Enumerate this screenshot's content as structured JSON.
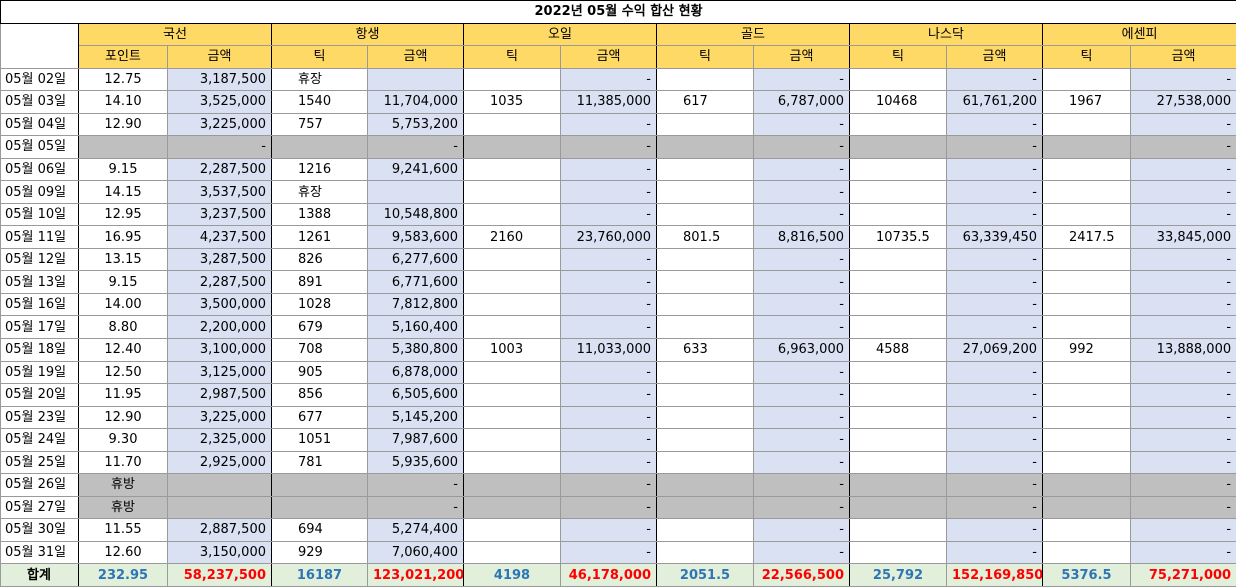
{
  "title": "2022년 05월 수익 합산 현황",
  "groups": [
    "국선",
    "항생",
    "오일",
    "골드",
    "나스닥",
    "에센피"
  ],
  "subheaders": [
    "포인트",
    "금액",
    "틱",
    "금액",
    "틱",
    "금액",
    "틱",
    "금액",
    "틱",
    "금액",
    "틱",
    "금액"
  ],
  "rows": [
    [
      "05월 02일",
      "12.75",
      "3,187,500",
      "휴장",
      null,
      null,
      "-",
      null,
      "-",
      null,
      "-",
      null,
      "-"
    ],
    [
      "05월 03일",
      "14.10",
      "3,525,000",
      "1540",
      "11,704,000",
      "1035",
      "11,385,000",
      "617",
      "6,787,000",
      "10468",
      "61,761,200",
      "1967",
      "27,538,000"
    ],
    [
      "05월 04일",
      "12.90",
      "3,225,000",
      "757",
      "5,753,200",
      null,
      "-",
      null,
      "-",
      null,
      "-",
      null,
      "-"
    ],
    [
      "05월 05일",
      null,
      "-",
      null,
      "-",
      null,
      "-",
      null,
      "-",
      null,
      "-",
      null,
      "-"
    ],
    [
      "05월 06일",
      "9.15",
      "2,287,500",
      "1216",
      "9,241,600",
      null,
      "-",
      null,
      "-",
      null,
      "-",
      null,
      "-"
    ],
    [
      "05월 09일",
      "14.15",
      "3,537,500",
      "휴장",
      null,
      null,
      "-",
      null,
      "-",
      null,
      "-",
      null,
      "-"
    ],
    [
      "05월 10일",
      "12.95",
      "3,237,500",
      "1388",
      "10,548,800",
      null,
      "-",
      null,
      "-",
      null,
      "-",
      null,
      "-"
    ],
    [
      "05월 11일",
      "16.95",
      "4,237,500",
      "1261",
      "9,583,600",
      "2160",
      "23,760,000",
      "801.5",
      "8,816,500",
      "10735.5",
      "63,339,450",
      "2417.5",
      "33,845,000"
    ],
    [
      "05월 12일",
      "13.15",
      "3,287,500",
      "826",
      "6,277,600",
      null,
      "-",
      null,
      "-",
      null,
      "-",
      null,
      "-"
    ],
    [
      "05월 13일",
      "9.15",
      "2,287,500",
      "891",
      "6,771,600",
      null,
      "-",
      null,
      "-",
      null,
      "-",
      null,
      "-"
    ],
    [
      "05월 16일",
      "14.00",
      "3,500,000",
      "1028",
      "7,812,800",
      null,
      "-",
      null,
      "-",
      null,
      "-",
      null,
      "-"
    ],
    [
      "05월 17일",
      "8.80",
      "2,200,000",
      "679",
      "5,160,400",
      null,
      "-",
      null,
      "-",
      null,
      "-",
      null,
      "-"
    ],
    [
      "05월 18일",
      "12.40",
      "3,100,000",
      "708",
      "5,380,800",
      "1003",
      "11,033,000",
      "633",
      "6,963,000",
      "4588",
      "27,069,200",
      "992",
      "13,888,000"
    ],
    [
      "05월 19일",
      "12.50",
      "3,125,000",
      "905",
      "6,878,000",
      null,
      "-",
      null,
      "-",
      null,
      "-",
      null,
      "-"
    ],
    [
      "05월 20일",
      "11.95",
      "2,987,500",
      "856",
      "6,505,600",
      null,
      "-",
      null,
      "-",
      null,
      "-",
      null,
      "-"
    ],
    [
      "05월 23일",
      "12.90",
      "3,225,000",
      "677",
      "5,145,200",
      null,
      "-",
      null,
      "-",
      null,
      "-",
      null,
      "-"
    ],
    [
      "05월 24일",
      "9.30",
      "2,325,000",
      "1051",
      "7,987,600",
      null,
      "-",
      null,
      "-",
      null,
      "-",
      null,
      "-"
    ],
    [
      "05월 25일",
      "11.70",
      "2,925,000",
      "781",
      "5,935,600",
      null,
      "-",
      null,
      "-",
      null,
      "-",
      null,
      "-"
    ],
    [
      "05월 26일",
      "휴방",
      null,
      null,
      "-",
      null,
      "-",
      null,
      "-",
      null,
      "-",
      null,
      "-"
    ],
    [
      "05월 27일",
      "휴방",
      null,
      null,
      "-",
      null,
      "-",
      null,
      "-",
      null,
      "-",
      null,
      "-"
    ],
    [
      "05월 30일",
      "11.55",
      "2,887,500",
      "694",
      "5,274,400",
      null,
      "-",
      null,
      "-",
      null,
      "-",
      null,
      "-"
    ],
    [
      "05월 31일",
      "12.60",
      "3,150,000",
      "929",
      "7,060,400",
      null,
      "-",
      null,
      "-",
      null,
      "-",
      null,
      "-"
    ]
  ],
  "total": [
    "합계",
    "232.95",
    "58,237,500",
    "16187",
    "123,021,200",
    "4198",
    "46,178,000",
    "2051.5",
    "22,566,500",
    "25,792",
    "152,169,850",
    "5376.5",
    "75,271,000"
  ]
}
